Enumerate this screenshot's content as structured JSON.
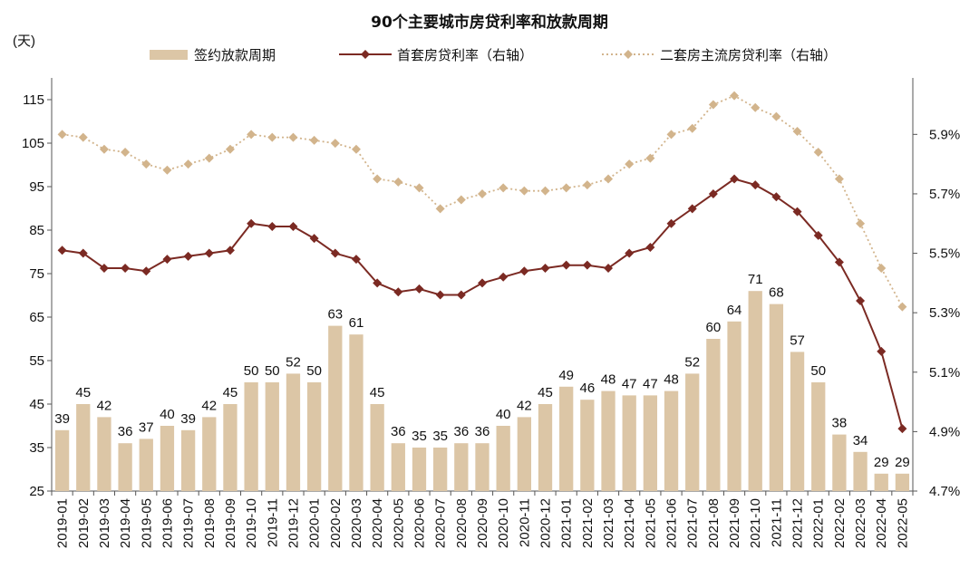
{
  "chart_data": {
    "type": "bar+line",
    "title": "90个主要城市房贷利率和放款周期",
    "left_axis_label": "(天)",
    "left_axis": {
      "min": 25,
      "max": 120,
      "ticks": [
        25,
        35,
        45,
        55,
        65,
        75,
        85,
        95,
        105,
        115
      ]
    },
    "right_axis": {
      "min": 4.7,
      "max": 6.09,
      "ticks": [
        "4.7%",
        "4.9%",
        "5.1%",
        "5.3%",
        "5.5%",
        "5.7%",
        "5.9%"
      ],
      "tick_values": [
        4.7,
        4.9,
        5.1,
        5.3,
        5.5,
        5.7,
        5.9
      ]
    },
    "categories": [
      "2019-01",
      "2019-02",
      "2019-03",
      "2019-04",
      "2019-05",
      "2019-06",
      "2019-07",
      "2019-08",
      "2019-09",
      "2019-10",
      "2019-11",
      "2019-12",
      "2020-01",
      "2020-02",
      "2020-03",
      "2020-04",
      "2020-05",
      "2020-06",
      "2020-07",
      "2020-08",
      "2020-09",
      "2020-10",
      "2020-11",
      "2020-12",
      "2021-01",
      "2021-02",
      "2021-03",
      "2021-04",
      "2021-05",
      "2021-06",
      "2021-07",
      "2021-08",
      "2021-09",
      "2021-10",
      "2021-11",
      "2021-12",
      "2022-01",
      "2022-02",
      "2022-03",
      "2022-04",
      "2022-05"
    ],
    "series": [
      {
        "name": "签约放款周期",
        "type": "bar",
        "axis": "left",
        "color": "#dcc6a6",
        "values": [
          39,
          45,
          42,
          36,
          37,
          40,
          39,
          42,
          45,
          50,
          50,
          52,
          50,
          63,
          61,
          45,
          36,
          35,
          35,
          36,
          36,
          40,
          42,
          45,
          49,
          46,
          48,
          47,
          47,
          48,
          52,
          60,
          64,
          71,
          68,
          57,
          50,
          38,
          34,
          29,
          29
        ]
      },
      {
        "name": "首套房贷利率（右轴）",
        "type": "line",
        "axis": "right",
        "color": "#7b2a23",
        "marker": "diamond",
        "values": [
          5.51,
          5.5,
          5.45,
          5.45,
          5.44,
          5.48,
          5.49,
          5.5,
          5.51,
          5.6,
          5.59,
          5.59,
          5.55,
          5.5,
          5.48,
          5.4,
          5.37,
          5.38,
          5.36,
          5.36,
          5.4,
          5.42,
          5.44,
          5.45,
          5.46,
          5.46,
          5.45,
          5.5,
          5.52,
          5.6,
          5.65,
          5.7,
          5.75,
          5.73,
          5.69,
          5.64,
          5.56,
          5.47,
          5.34,
          5.17,
          4.91
        ]
      },
      {
        "name": "二套房主流房贷利率（右轴）",
        "type": "line",
        "axis": "right",
        "color": "#d2b48c",
        "style": "dotted",
        "marker": "diamond",
        "values": [
          5.9,
          5.89,
          5.85,
          5.84,
          5.8,
          5.78,
          5.8,
          5.82,
          5.85,
          5.9,
          5.89,
          5.89,
          5.88,
          5.87,
          5.85,
          5.75,
          5.74,
          5.72,
          5.65,
          5.68,
          5.7,
          5.72,
          5.71,
          5.71,
          5.72,
          5.73,
          5.75,
          5.8,
          5.82,
          5.9,
          5.92,
          6.0,
          6.03,
          5.99,
          5.96,
          5.91,
          5.84,
          5.75,
          5.6,
          5.45,
          5.32
        ]
      }
    ],
    "legend_placement": "top",
    "grid": false
  }
}
